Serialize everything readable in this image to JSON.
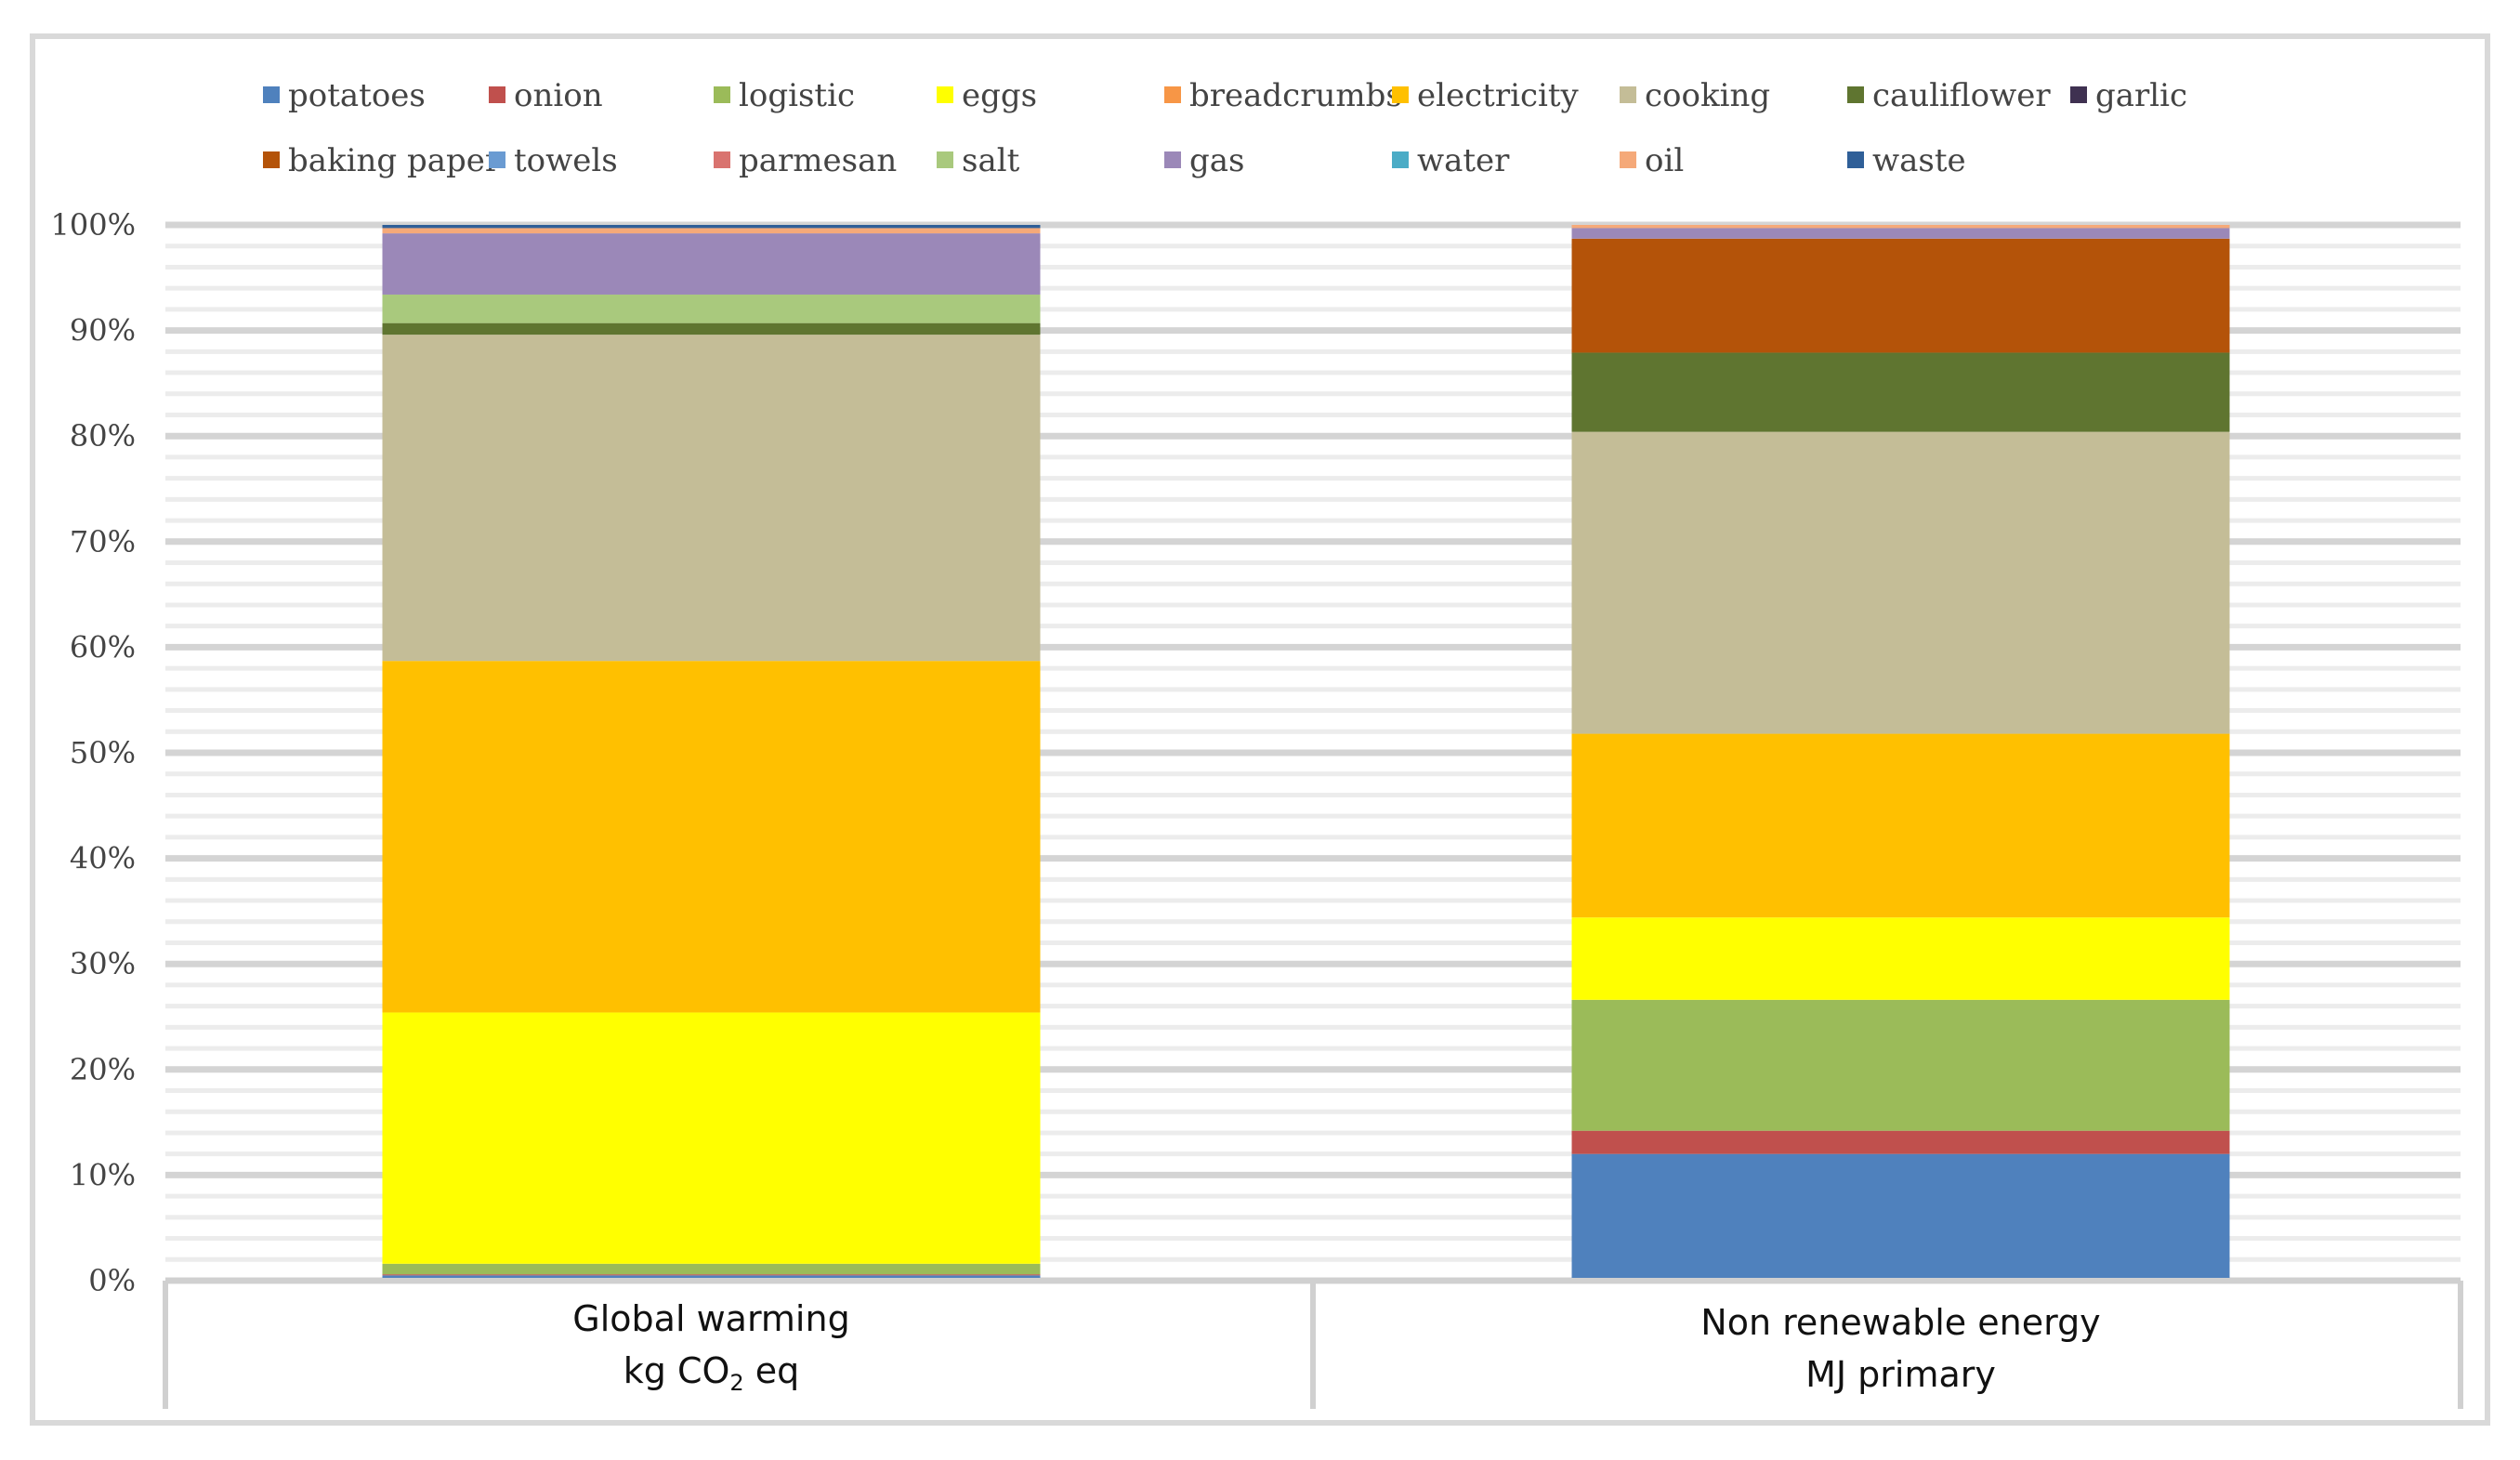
{
  "chart_data": {
    "type": "bar",
    "stacked": true,
    "percent": true,
    "title": "",
    "xlabel": "",
    "ylabel": "",
    "ylim": [
      0,
      100
    ],
    "grid": true,
    "legend_position": "top",
    "y_ticks": [
      "0%",
      "10%",
      "20%",
      "30%",
      "40%",
      "50%",
      "60%",
      "70%",
      "80%",
      "90%",
      "100%"
    ],
    "categories": [
      {
        "line1": "Global warming",
        "line2_prefix": "kg CO",
        "line2_sub": "2",
        "line2_suffix": " eq"
      },
      {
        "line1": "Non renewable energy",
        "line2_prefix": "MJ primary",
        "line2_sub": "",
        "line2_suffix": ""
      }
    ],
    "series": [
      {
        "name": "potatoes",
        "color": "#4f81bd",
        "values": [
          0.5,
          12.0
        ]
      },
      {
        "name": "onion",
        "color": "#c0504d",
        "values": [
          0.1,
          2.2
        ]
      },
      {
        "name": "logistic",
        "color": "#9bbb59",
        "values": [
          1.0,
          12.4
        ]
      },
      {
        "name": "eggs",
        "color": "#ffff00",
        "values": [
          23.8,
          7.8
        ]
      },
      {
        "name": "breadcrumbs",
        "color": "#f79646",
        "values": [
          0.0,
          0.0
        ]
      },
      {
        "name": "electricity",
        "color": "#ffc000",
        "values": [
          33.3,
          17.4
        ]
      },
      {
        "name": "cooking",
        "color": "#c4bd97",
        "values": [
          30.9,
          28.6
        ]
      },
      {
        "name": "cauliflower",
        "color": "#5f7530",
        "values": [
          1.1,
          7.5
        ]
      },
      {
        "name": "garlic",
        "color": "#3f3151",
        "values": [
          0.0,
          0.0
        ]
      },
      {
        "name": "baking paper",
        "color": "#b45309",
        "values": [
          0.0,
          10.8
        ]
      },
      {
        "name": "towels",
        "color": "#6a9bd2",
        "values": [
          0.0,
          0.0
        ]
      },
      {
        "name": "parmesan",
        "color": "#d9736f",
        "values": [
          0.0,
          0.0
        ]
      },
      {
        "name": "salt",
        "color": "#a9c97d",
        "values": [
          2.7,
          0.0
        ]
      },
      {
        "name": "gas",
        "color": "#9b88b8",
        "values": [
          5.8,
          1.0
        ]
      },
      {
        "name": "water",
        "color": "#4bacc6",
        "values": [
          0.0,
          0.0
        ]
      },
      {
        "name": "oil",
        "color": "#f5a979",
        "values": [
          0.5,
          0.3
        ]
      },
      {
        "name": "waste",
        "color": "#2f5f98",
        "values": [
          0.3,
          0.0
        ]
      }
    ]
  }
}
